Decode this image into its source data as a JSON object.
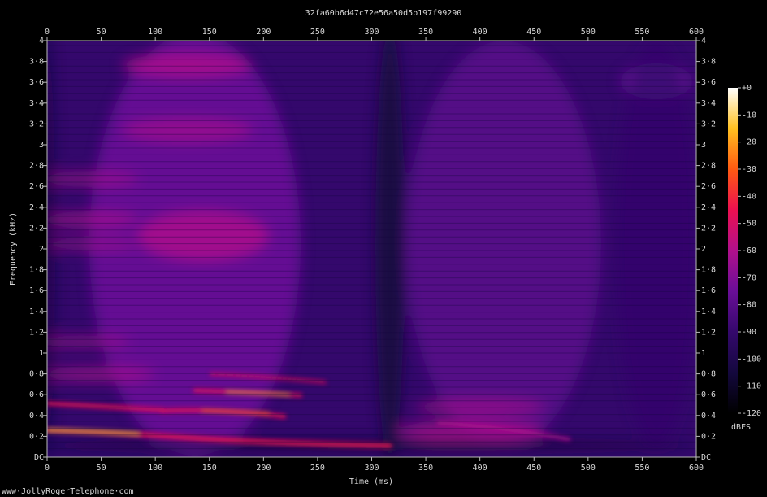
{
  "chart_data": {
    "type": "spectrogram",
    "title": "32fa60b6d47c72e56a50d5b197f99290",
    "xlabel": "Time (ms)",
    "ylabel": "Frequency (kHz)",
    "colorbar_label": "dBFS",
    "annotation": "www·JollyRogerTelephone·com",
    "xlim": [
      0,
      600
    ],
    "xticks": [
      0,
      50,
      100,
      150,
      200,
      250,
      300,
      350,
      400,
      450,
      500,
      550,
      600
    ],
    "ylim": [
      0,
      4
    ],
    "yticks": [
      {
        "value": 0,
        "label": "DC"
      },
      {
        "value": 0.2,
        "label": "0·2"
      },
      {
        "value": 0.4,
        "label": "0·4"
      },
      {
        "value": 0.6,
        "label": "0·6"
      },
      {
        "value": 0.8,
        "label": "0·8"
      },
      1,
      {
        "value": 1.2,
        "label": "1·2"
      },
      {
        "value": 1.4,
        "label": "1·4"
      },
      {
        "value": 1.6,
        "label": "1·6"
      },
      {
        "value": 1.8,
        "label": "1·8"
      },
      2,
      {
        "value": 2.2,
        "label": "2·2"
      },
      {
        "value": 2.4,
        "label": "2·4"
      },
      {
        "value": 2.6,
        "label": "2·6"
      },
      {
        "value": 2.8,
        "label": "2·8"
      },
      3,
      {
        "value": 3.2,
        "label": "3·2"
      },
      {
        "value": 3.4,
        "label": "3·4"
      },
      {
        "value": 3.6,
        "label": "3·6"
      },
      {
        "value": 3.8,
        "label": "3·8"
      },
      4
    ],
    "clim": [
      -120,
      0
    ],
    "cticks": [
      {
        "value": 0,
        "label": "+0"
      },
      -10,
      -20,
      -30,
      -40,
      -50,
      -60,
      -70,
      -80,
      -90,
      -100,
      -110,
      -120
    ],
    "colormap": [
      "#000000",
      "#14083e",
      "#34086c",
      "#6a0e98",
      "#b0108c",
      "#ec1050",
      "#ff5a12",
      "#ffc020",
      "#ffffff"
    ]
  }
}
